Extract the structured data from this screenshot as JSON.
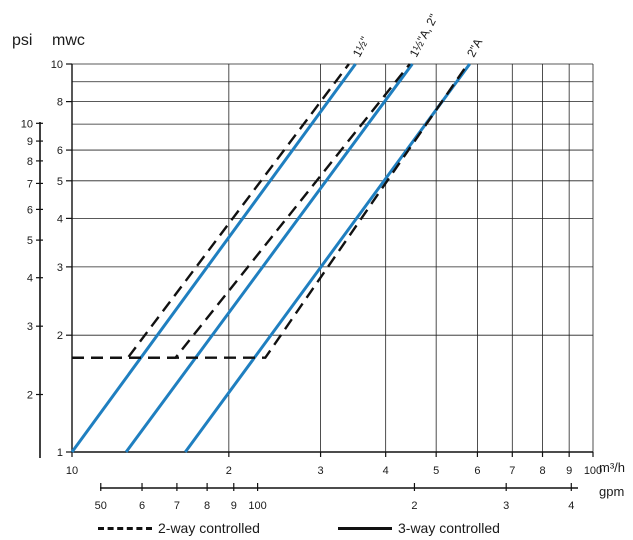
{
  "chart_data": {
    "type": "line",
    "title": "",
    "left_axis_units": [
      "psi",
      "mwc"
    ],
    "x_unit_top": "m³/h",
    "x_unit_bottom": "gpm",
    "x_top_ticks": [
      {
        "v": 1,
        "label": "10"
      },
      {
        "v": 2,
        "label": "2"
      },
      {
        "v": 3,
        "label": "3"
      },
      {
        "v": 4,
        "label": "4"
      },
      {
        "v": 5,
        "label": "5"
      },
      {
        "v": 6,
        "label": "6"
      },
      {
        "v": 7,
        "label": "7"
      },
      {
        "v": 8,
        "label": "8"
      },
      {
        "v": 9,
        "label": "9"
      },
      {
        "v": 10,
        "label": "100"
      }
    ],
    "x_bottom_ticks": [
      {
        "v": 0.5,
        "label": "50"
      },
      {
        "v": 0.6,
        "label": "6"
      },
      {
        "v": 0.7,
        "label": "7"
      },
      {
        "v": 0.8,
        "label": "8"
      },
      {
        "v": 0.9,
        "label": "9"
      },
      {
        "v": 1.0,
        "label": "100"
      },
      {
        "v": 2,
        "label": "2"
      },
      {
        "v": 3,
        "label": "3"
      },
      {
        "v": 4,
        "label": "4"
      }
    ],
    "y_mwc_ticks": [
      {
        "v": 1,
        "label": "1"
      },
      {
        "v": 2,
        "label": "2"
      },
      {
        "v": 3,
        "label": "3"
      },
      {
        "v": 4,
        "label": "4"
      },
      {
        "v": 5,
        "label": "5"
      },
      {
        "v": 6,
        "label": "6"
      },
      {
        "v": 8,
        "label": "8"
      },
      {
        "v": 10,
        "label": "10"
      }
    ],
    "y_psi_ticks": [
      {
        "v": 2,
        "label": "2"
      },
      {
        "v": 3,
        "label": "3"
      },
      {
        "v": 4,
        "label": "4"
      },
      {
        "v": 5,
        "label": "5"
      },
      {
        "v": 6,
        "label": "6"
      },
      {
        "v": 7,
        "label": "7"
      },
      {
        "v": 8,
        "label": "8"
      },
      {
        "v": 9,
        "label": "9"
      },
      {
        "v": 10,
        "label": "10"
      }
    ],
    "x_range": [
      1,
      10
    ],
    "y_range": [
      1,
      10
    ],
    "x_scale": "log",
    "y_scale": "log",
    "grid": true,
    "line_color": "#1f7fc0",
    "series": [
      {
        "name": "1½\"",
        "solid": [
          [
            1.0,
            1.0
          ],
          [
            3.5,
            10
          ]
        ],
        "dashed": [
          [
            1.0,
            1.75
          ],
          [
            1.28,
            1.75
          ],
          [
            3.4,
            10
          ]
        ]
      },
      {
        "name": "1½\"A, 2\"",
        "solid": [
          [
            1.27,
            1.0
          ],
          [
            4.5,
            10
          ]
        ],
        "dashed": [
          [
            1.0,
            1.75
          ],
          [
            1.58,
            1.75
          ],
          [
            4.45,
            10
          ]
        ]
      },
      {
        "name": "2\"A",
        "solid": [
          [
            1.65,
            1.0
          ],
          [
            5.8,
            10
          ]
        ],
        "dashed": [
          [
            1.0,
            1.75
          ],
          [
            2.35,
            1.75
          ],
          [
            5.75,
            10
          ]
        ]
      }
    ],
    "legend": [
      {
        "style": "dashed",
        "label": "2-way controlled"
      },
      {
        "style": "solid",
        "label": "3-way controlled"
      }
    ],
    "legend_position": "bottom"
  }
}
